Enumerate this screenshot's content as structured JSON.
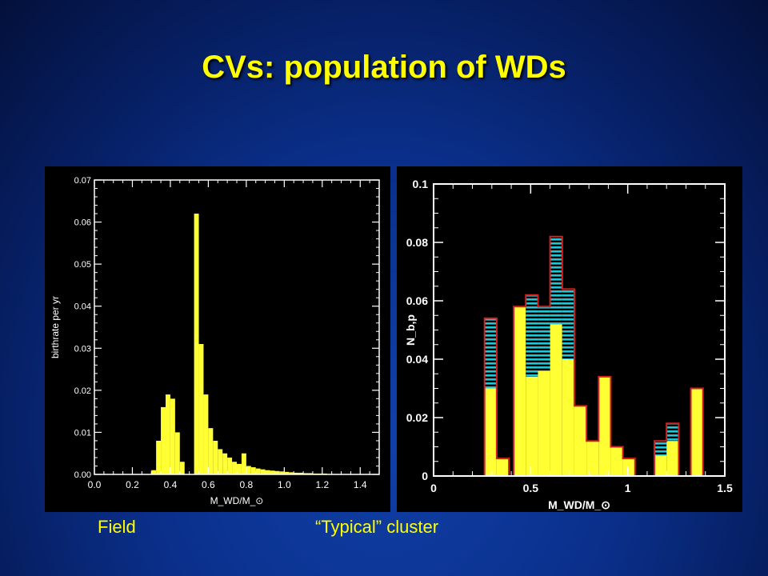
{
  "slide": {
    "title": "CVs: population of WDs",
    "caption_left": "Field",
    "caption_right": "“Typical” cluster"
  },
  "colors": {
    "bar_fill": "#ffff33",
    "cyan_hatch": "#22c7d6",
    "red_outline": "#d42020",
    "text_yellow": "#ffff00"
  },
  "chart_data": [
    {
      "type": "bar",
      "xlabel": "M_WD/M_⊙",
      "ylabel": "birthrate per yr",
      "xlim": [
        0.0,
        1.5
      ],
      "ylim": [
        0.0,
        0.07
      ],
      "xticks": [
        "0.0",
        "0.2",
        "0.4",
        "0.6",
        "0.8",
        "1.0",
        "1.2",
        "1.4"
      ],
      "yticks": [
        "0.00",
        "0.01",
        "0.02",
        "0.03",
        "0.04",
        "0.05",
        "0.06",
        "0.07"
      ],
      "bin_width": 0.025,
      "bins": [
        {
          "x0": 0.3,
          "value": 0.001
        },
        {
          "x0": 0.325,
          "value": 0.008
        },
        {
          "x0": 0.35,
          "value": 0.016
        },
        {
          "x0": 0.375,
          "value": 0.019
        },
        {
          "x0": 0.4,
          "value": 0.018
        },
        {
          "x0": 0.425,
          "value": 0.01
        },
        {
          "x0": 0.45,
          "value": 0.003
        },
        {
          "x0": 0.525,
          "value": 0.062
        },
        {
          "x0": 0.55,
          "value": 0.031
        },
        {
          "x0": 0.575,
          "value": 0.019
        },
        {
          "x0": 0.6,
          "value": 0.011
        },
        {
          "x0": 0.625,
          "value": 0.008
        },
        {
          "x0": 0.65,
          "value": 0.006
        },
        {
          "x0": 0.675,
          "value": 0.005
        },
        {
          "x0": 0.7,
          "value": 0.004
        },
        {
          "x0": 0.725,
          "value": 0.003
        },
        {
          "x0": 0.75,
          "value": 0.0025
        },
        {
          "x0": 0.775,
          "value": 0.005
        },
        {
          "x0": 0.8,
          "value": 0.002
        },
        {
          "x0": 0.825,
          "value": 0.0017
        },
        {
          "x0": 0.85,
          "value": 0.0014
        },
        {
          "x0": 0.875,
          "value": 0.0012
        },
        {
          "x0": 0.9,
          "value": 0.001
        },
        {
          "x0": 0.925,
          "value": 0.0009
        },
        {
          "x0": 0.95,
          "value": 0.0008
        },
        {
          "x0": 0.975,
          "value": 0.0007
        },
        {
          "x0": 1.0,
          "value": 0.0006
        },
        {
          "x0": 1.025,
          "value": 0.0005
        },
        {
          "x0": 1.05,
          "value": 0.0004
        },
        {
          "x0": 1.075,
          "value": 0.0004
        },
        {
          "x0": 1.1,
          "value": 0.0003
        },
        {
          "x0": 1.125,
          "value": 0.0003
        },
        {
          "x0": 1.15,
          "value": 0.0002
        },
        {
          "x0": 1.175,
          "value": 0.0002
        },
        {
          "x0": 1.2,
          "value": 0.0002
        },
        {
          "x0": 1.225,
          "value": 0.0001
        },
        {
          "x0": 1.25,
          "value": 0.0001
        },
        {
          "x0": 1.275,
          "value": 0.0001
        },
        {
          "x0": 1.3,
          "value": 0.0001
        }
      ]
    },
    {
      "type": "bar",
      "xlabel": "M_WD/M_⊙",
      "ylabel": "N_b,p",
      "xlim": [
        0.0,
        1.5
      ],
      "ylim": [
        0.0,
        0.1
      ],
      "xticks": [
        "0",
        "0.5",
        "1",
        "1.5"
      ],
      "yticks": [
        "0",
        "0.02",
        "0.04",
        "0.06",
        "0.08",
        "0.1"
      ],
      "bin_width": 0.0625,
      "bins": [
        {
          "x0": 0.2625,
          "yellow": 0.03,
          "total": 0.054
        },
        {
          "x0": 0.325,
          "yellow": 0.006,
          "total": 0.006
        },
        {
          "x0": 0.4125,
          "yellow": 0.058,
          "total": 0.058
        },
        {
          "x0": 0.475,
          "yellow": 0.034,
          "total": 0.062
        },
        {
          "x0": 0.5375,
          "yellow": 0.036,
          "total": 0.058
        },
        {
          "x0": 0.6,
          "yellow": 0.052,
          "total": 0.082
        },
        {
          "x0": 0.6625,
          "yellow": 0.04,
          "total": 0.064
        },
        {
          "x0": 0.725,
          "yellow": 0.024,
          "total": 0.024
        },
        {
          "x0": 0.7875,
          "yellow": 0.012,
          "total": 0.012
        },
        {
          "x0": 0.85,
          "yellow": 0.034,
          "total": 0.034
        },
        {
          "x0": 0.9125,
          "yellow": 0.01,
          "total": 0.01
        },
        {
          "x0": 0.975,
          "yellow": 0.006,
          "total": 0.006
        },
        {
          "x0": 1.1375,
          "yellow": 0.007,
          "total": 0.012
        },
        {
          "x0": 1.2,
          "yellow": 0.012,
          "total": 0.018
        },
        {
          "x0": 1.325,
          "yellow": 0.03,
          "total": 0.03
        }
      ]
    }
  ]
}
